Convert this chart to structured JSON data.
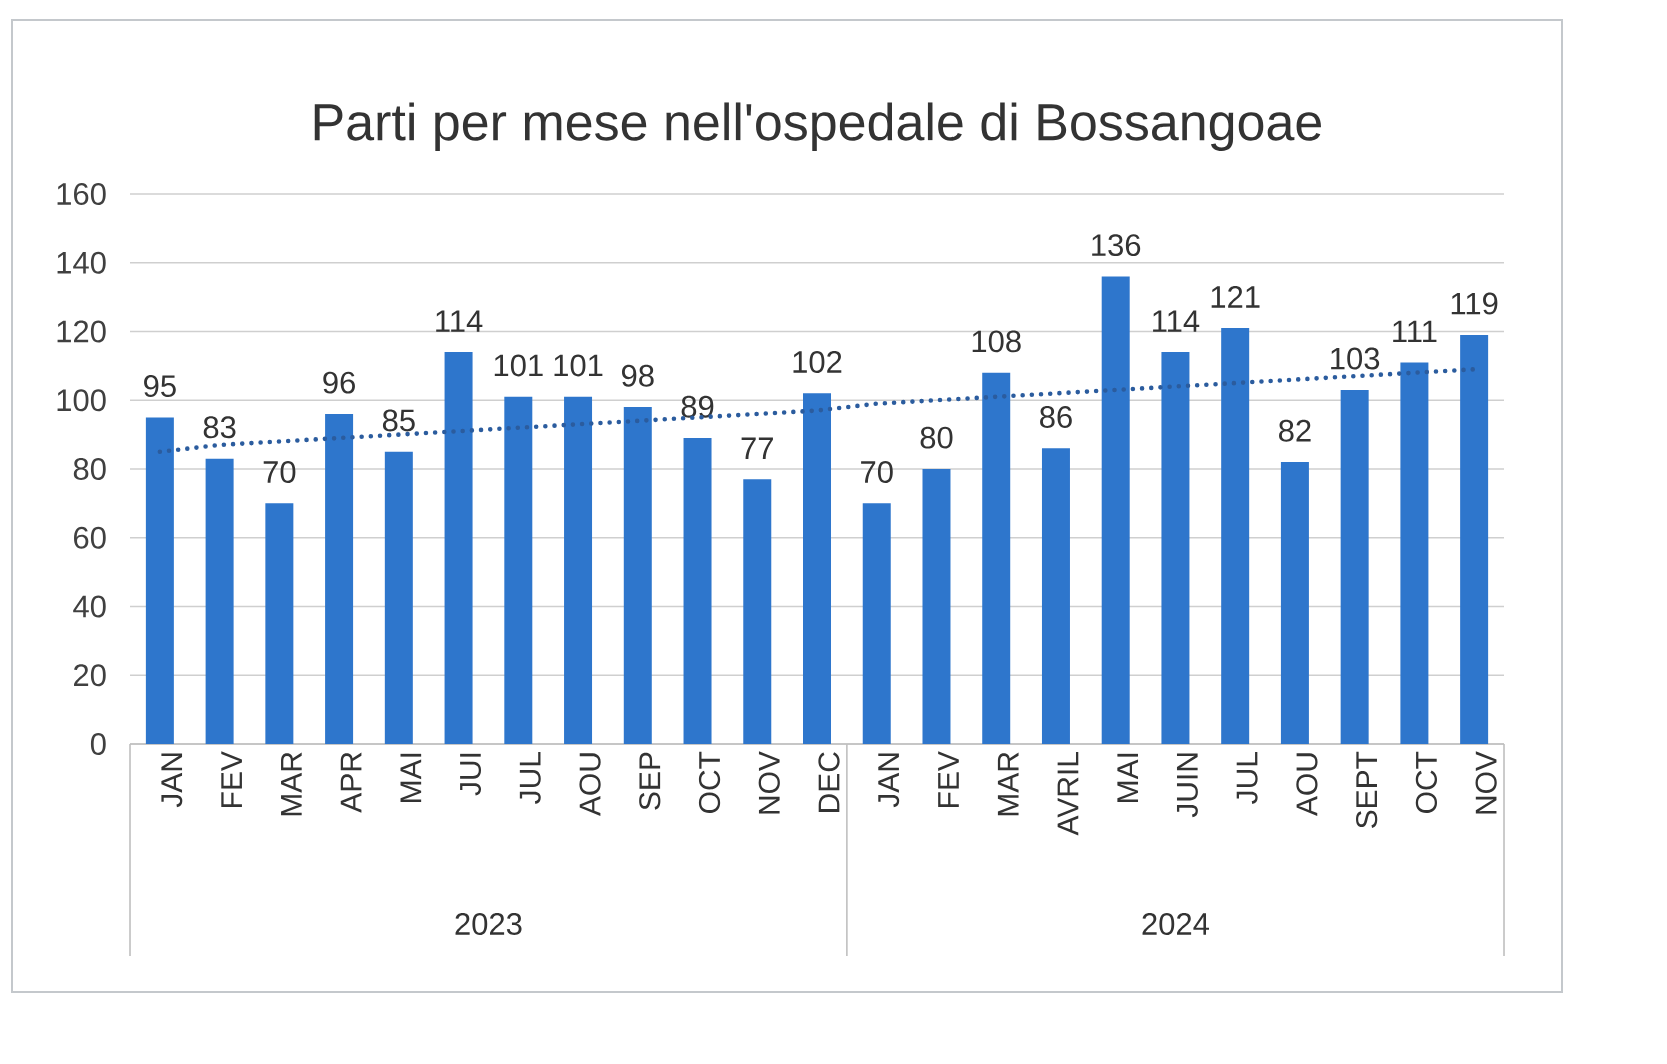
{
  "chart_data": {
    "type": "bar",
    "title": "Parti per mese nell'ospedale di Bossangoae",
    "categories": [
      "JAN",
      "FEV",
      "MAR",
      "APR",
      "MAI",
      "JUI",
      "JUL",
      "AOU",
      "SEP",
      "OCT",
      "NOV",
      "DEC",
      "JAN",
      "FEV",
      "MAR",
      "AVRIL",
      "MAI",
      "JUIN",
      "JUL",
      "AOU",
      "SEPT",
      "OCT",
      "NOV"
    ],
    "annotations": [
      "2023",
      "2024"
    ],
    "series": [
      {
        "color": "#2e76cc",
        "data_labels": true,
        "values": [
          95,
          83,
          70,
          96,
          85,
          114,
          101,
          101,
          98,
          89,
          77,
          102,
          70,
          80,
          108,
          86,
          136,
          114,
          121,
          82,
          103,
          111,
          119
        ]
      },
      {
        "type": "line",
        "color": "#2b5c9e",
        "line_style": "dotted",
        "values": [
          85,
          87,
          88,
          89,
          90,
          91,
          92,
          93,
          94,
          95,
          96,
          97,
          99,
          100,
          101,
          102,
          103,
          104,
          105,
          106,
          107,
          108,
          109
        ]
      }
    ],
    "ylim": [
      0,
      160
    ],
    "yticks": [
      0,
      20,
      40,
      60,
      80,
      100,
      120,
      140,
      160
    ],
    "grid": "y"
  }
}
